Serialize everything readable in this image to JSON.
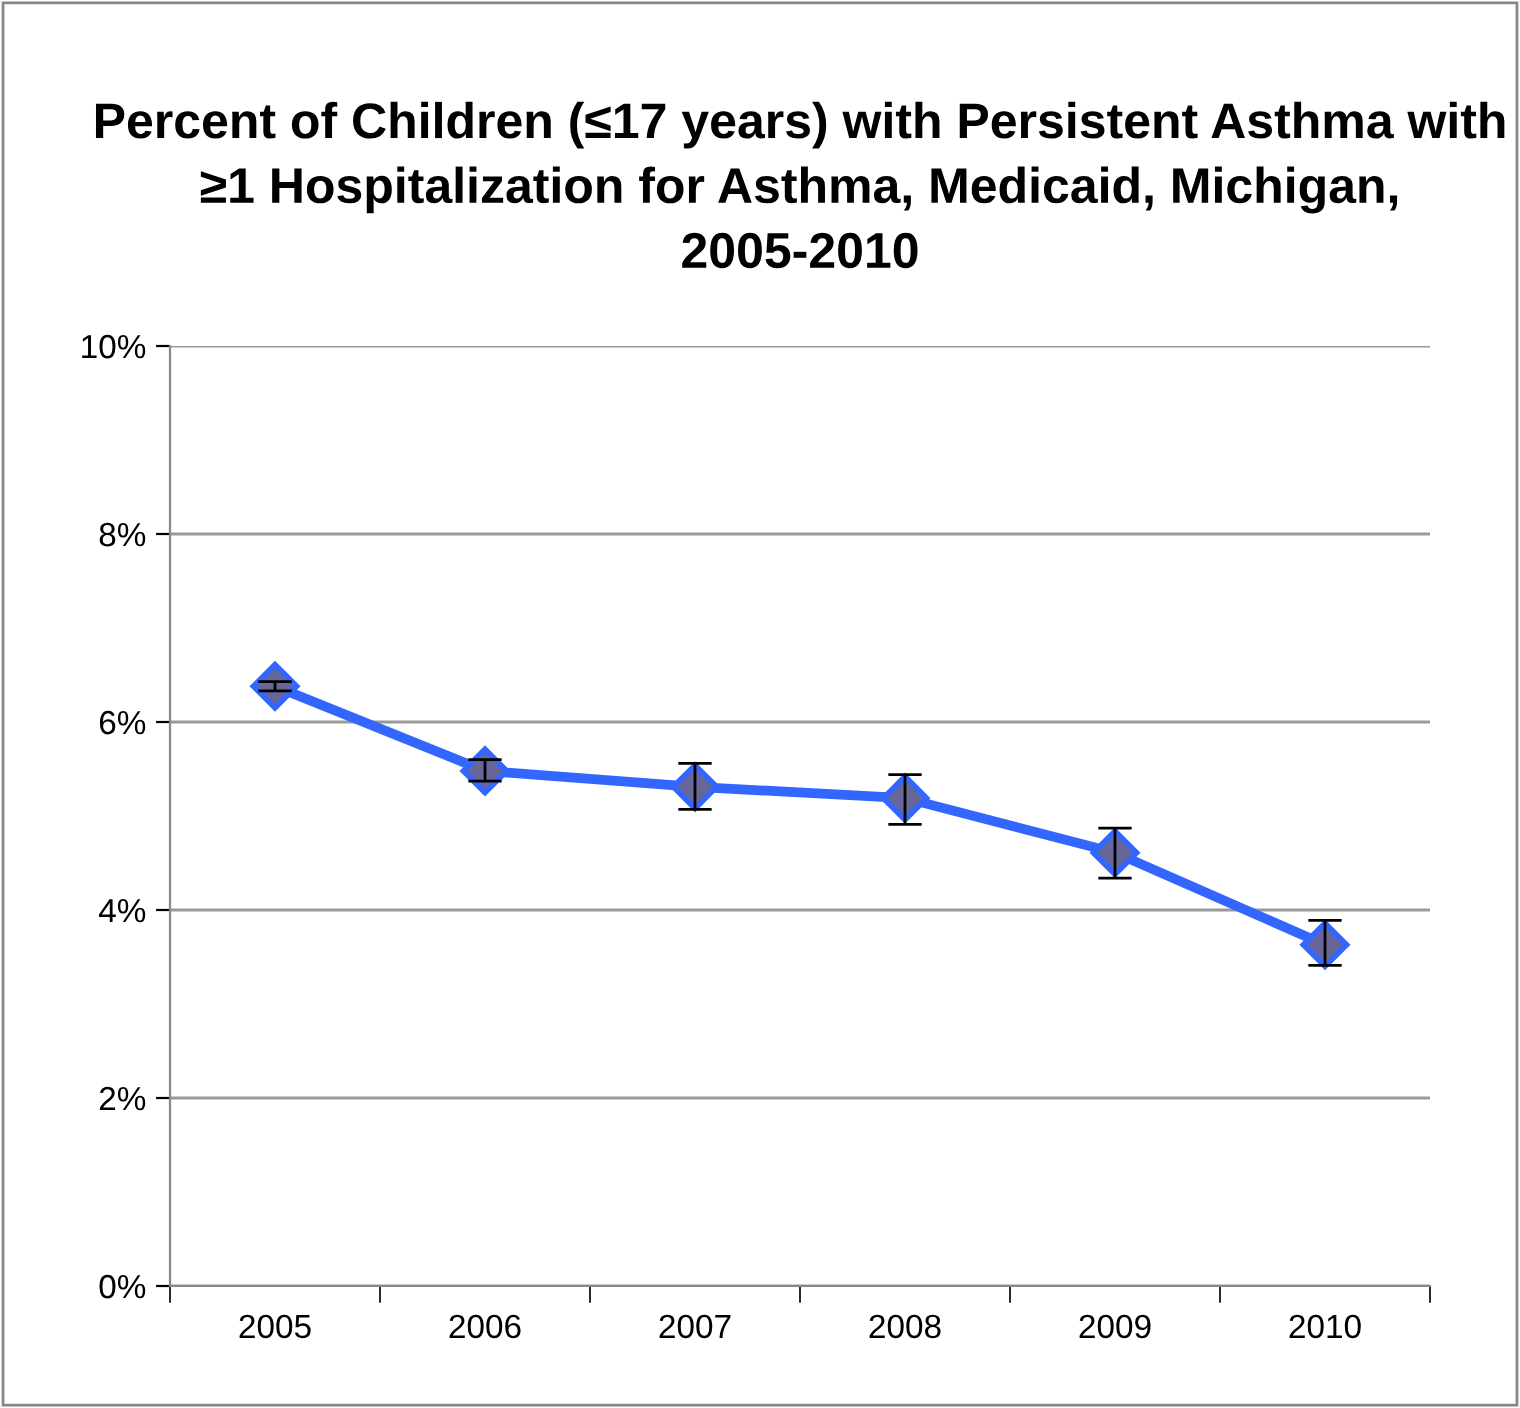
{
  "chart_data": {
    "type": "line",
    "title": "Percent of Children (≤17 years) with Persistent Asthma with ≥1 Hospitalization for Asthma, Medicaid, Michigan, 2005-2010",
    "categories": [
      "2005",
      "2006",
      "2007",
      "2008",
      "2009",
      "2010"
    ],
    "series": [
      {
        "color": "#3366ff",
        "values": [
          6.38,
          5.48,
          5.31,
          5.19,
          4.61,
          3.63
        ],
        "errors": [
          0.05,
          [
            5.37,
            5.6
          ],
          [
            5.07,
            5.56
          ],
          [
            4.91,
            5.44
          ],
          [
            4.34,
            4.87
          ],
          [
            3.41,
            3.89
          ]
        ]
      }
    ],
    "ylim": [
      0,
      10
    ],
    "yticks": [
      {
        "value": 0,
        "label": "0%"
      },
      {
        "value": 2,
        "label": "2%"
      },
      {
        "value": 4,
        "label": "4%"
      },
      {
        "value": 6,
        "label": "6%"
      },
      {
        "value": 8,
        "label": "8%"
      },
      {
        "value": 10,
        "label": "10%"
      }
    ],
    "grid": "y",
    "marker": "diamond",
    "line_style": "solid",
    "legend": false
  }
}
